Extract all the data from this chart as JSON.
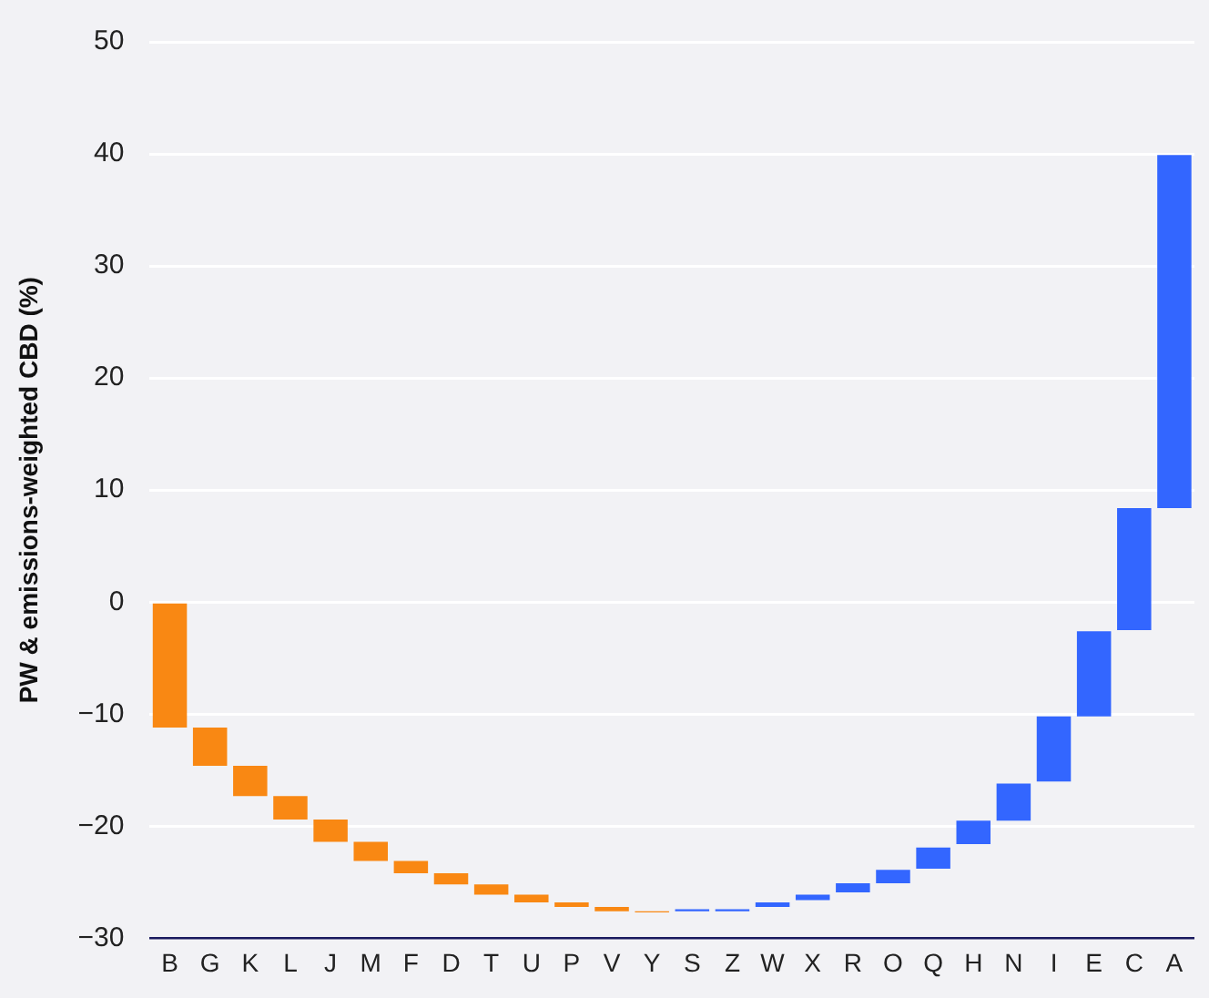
{
  "chart_data": {
    "type": "bar",
    "ylabel": "PW & emissions-weighted CBD (%)",
    "categories": [
      "B",
      "G",
      "K",
      "L",
      "J",
      "M",
      "F",
      "D",
      "T",
      "U",
      "P",
      "V",
      "Y",
      "S",
      "Z",
      "W",
      "X",
      "R",
      "O",
      "Q",
      "H",
      "N",
      "I",
      "E",
      "C",
      "A"
    ],
    "base": [
      0,
      -11.2,
      -14.6,
      -17.3,
      -19.4,
      -21.4,
      -23.1,
      -24.2,
      -25.2,
      -26.1,
      -26.8,
      -27.2,
      -27.6,
      -27.6,
      -27.6,
      -27.2,
      -26.6,
      -25.9,
      -25.1,
      -23.8,
      -21.6,
      -19.5,
      -16.0,
      -10.2,
      -2.5,
      8.4
    ],
    "values": [
      -11.2,
      -3.4,
      -2.7,
      -2.1,
      -2.0,
      -1.7,
      -1.1,
      -1.0,
      -0.9,
      -0.7,
      -0.4,
      -0.4,
      -0.1,
      0.2,
      0.2,
      0.4,
      0.5,
      0.8,
      1.2,
      1.9,
      2.1,
      3.3,
      5.8,
      7.6,
      10.9,
      31.5
    ],
    "colors": [
      "#f98813",
      "#f98813",
      "#f98813",
      "#f98813",
      "#f98813",
      "#f98813",
      "#f98813",
      "#f98813",
      "#f98813",
      "#f98813",
      "#f98813",
      "#f98813",
      "#f98813",
      "#3366ff",
      "#3366ff",
      "#3366ff",
      "#3366ff",
      "#3366ff",
      "#3366ff",
      "#3366ff",
      "#3366ff",
      "#3366ff",
      "#3366ff",
      "#3366ff",
      "#3366ff",
      "#3366ff"
    ],
    "ylim": [
      -30,
      50
    ],
    "yticks": [
      {
        "value": -30,
        "label": "−30"
      },
      {
        "value": -20,
        "label": "−20"
      },
      {
        "value": -10,
        "label": "−10"
      },
      0,
      10,
      20,
      30,
      40,
      50
    ],
    "grid": "y"
  }
}
